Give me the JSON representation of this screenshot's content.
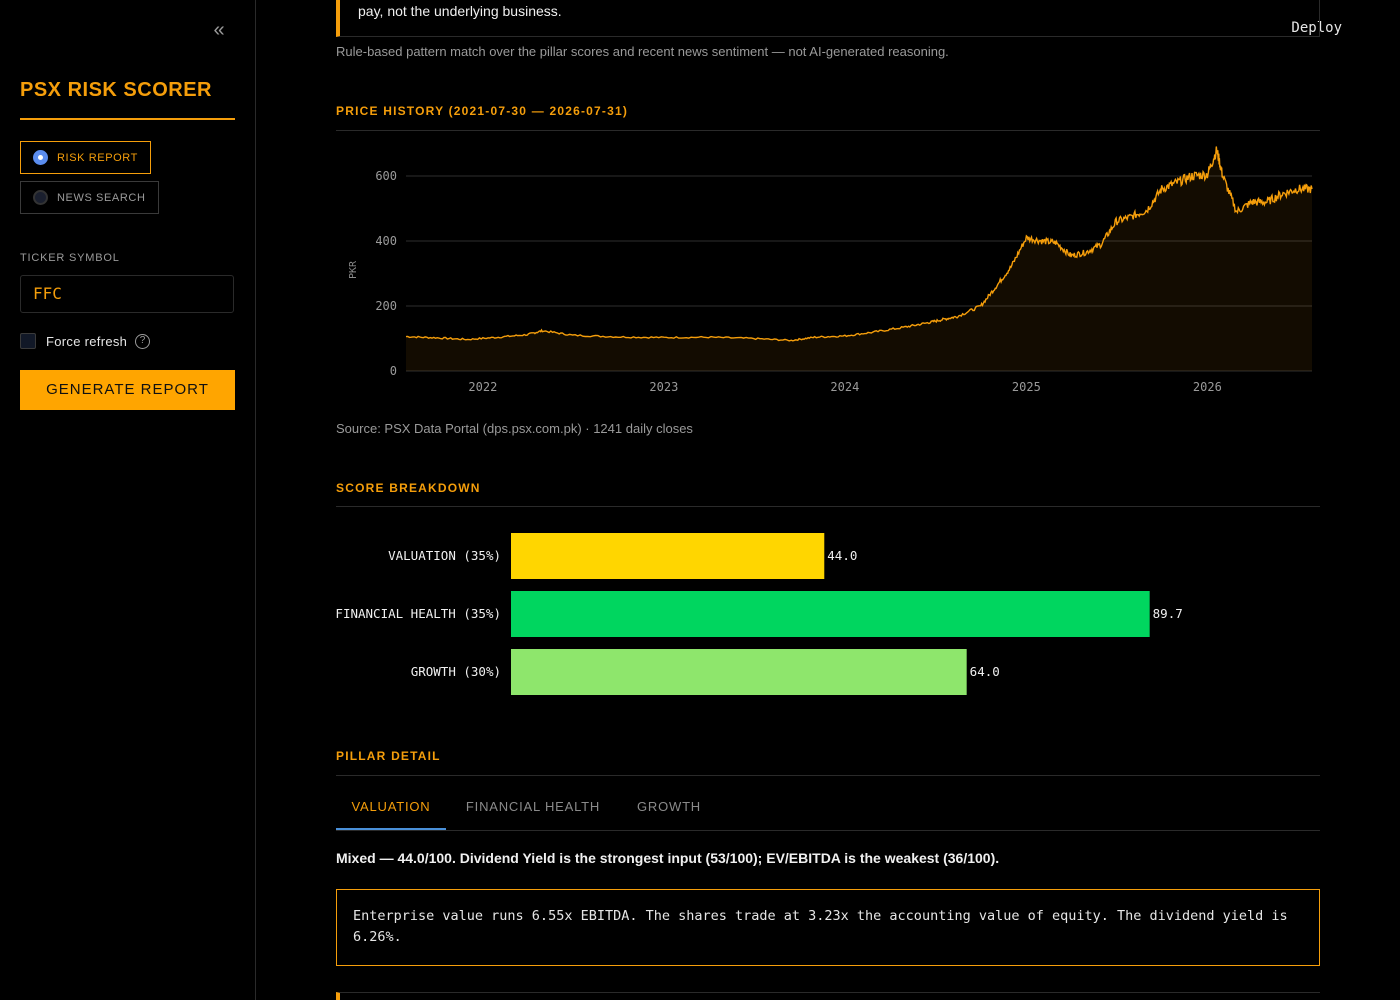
{
  "sidebar": {
    "collapse_icon": "double-chevron-left-icon",
    "app_title": "PSX RISK SCORER",
    "nav": [
      {
        "label": "RISK REPORT",
        "selected": true
      },
      {
        "label": "NEWS SEARCH",
        "selected": false
      }
    ],
    "ticker_label": "TICKER SYMBOL",
    "ticker_value": "FFC",
    "force_refresh_label": "Force refresh",
    "force_refresh_checked": false,
    "help_icon": "question-circle-icon",
    "generate_label": "GENERATE REPORT"
  },
  "header": {
    "deploy_label": "Deploy"
  },
  "top_quote": "pay, not the underlying business.",
  "rule_note": "Rule-based pattern match over the pillar scores and recent news sentiment — not AI-generated reasoning.",
  "price_section": {
    "heading": "PRICE HISTORY (2021-07-30 — 2026-07-31)",
    "source": "Source: PSX Data Portal (dps.psx.com.pk) · 1241 daily closes"
  },
  "score_section": {
    "heading": "SCORE BREAKDOWN"
  },
  "pillar_section": {
    "heading": "PILLAR DETAIL",
    "tabs": [
      {
        "label": "VALUATION",
        "active": true
      },
      {
        "label": "FINANCIAL HEALTH",
        "active": false
      },
      {
        "label": "GROWTH",
        "active": false
      }
    ],
    "summary": "Mixed — 44.0/100. Dividend Yield is the strongest input (53/100); EV/EBITDA is the weakest (36/100).",
    "detail": "Enterprise value runs 6.55x EBITDA. The shares trade at 3.23x the accounting value of equity. The dividend yield is 6.26%."
  },
  "chart_data": [
    {
      "type": "area",
      "title": "",
      "xlabel": "",
      "ylabel": "PKR",
      "x_ticks": [
        "2022",
        "2023",
        "2024",
        "2025",
        "2026"
      ],
      "y_ticks": [
        0,
        200,
        400,
        600
      ],
      "ylim": [
        0,
        680
      ],
      "xlim": [
        "2021-07-30",
        "2026-07-31"
      ],
      "grid": true,
      "color": "#f59e0b",
      "x": [
        "2021-07-30",
        "2021-10-01",
        "2021-12-01",
        "2022-02-01",
        "2022-04-01",
        "2022-05-01",
        "2022-07-01",
        "2022-10-01",
        "2023-01-01",
        "2023-04-01",
        "2023-07-01",
        "2023-09-15",
        "2023-11-01",
        "2024-01-01",
        "2024-03-01",
        "2024-05-01",
        "2024-06-15",
        "2024-07-15",
        "2024-08-15",
        "2024-10-01",
        "2024-11-01",
        "2024-12-01",
        "2025-01-01",
        "2025-02-01",
        "2025-03-01",
        "2025-04-01",
        "2025-05-01",
        "2025-06-01",
        "2025-07-01",
        "2025-08-01",
        "2025-09-01",
        "2025-10-01",
        "2025-11-01",
        "2025-12-01",
        "2026-01-01",
        "2026-01-20",
        "2026-02-01",
        "2026-03-01",
        "2026-04-01",
        "2026-05-01",
        "2026-06-01",
        "2026-07-01",
        "2026-07-31"
      ],
      "y": [
        106,
        102,
        97,
        104,
        112,
        124,
        110,
        105,
        103,
        104,
        100,
        94,
        104,
        108,
        120,
        135,
        148,
        158,
        168,
        200,
        260,
        320,
        410,
        400,
        395,
        355,
        365,
        390,
        460,
        475,
        495,
        560,
        580,
        600,
        605,
        680,
        600,
        490,
        520,
        520,
        545,
        560,
        560
      ]
    },
    {
      "type": "bar",
      "orientation": "horizontal",
      "categories": [
        "VALUATION (35%)",
        "FINANCIAL HEALTH (35%)",
        "GROWTH (30%)"
      ],
      "values": [
        44.0,
        89.7,
        64.0
      ],
      "value_labels": [
        "44.0",
        "89.7",
        "64.0"
      ],
      "colors": [
        "#ffd600",
        "#00d65f",
        "#8ee66c"
      ],
      "xlim": [
        0,
        100
      ]
    }
  ]
}
